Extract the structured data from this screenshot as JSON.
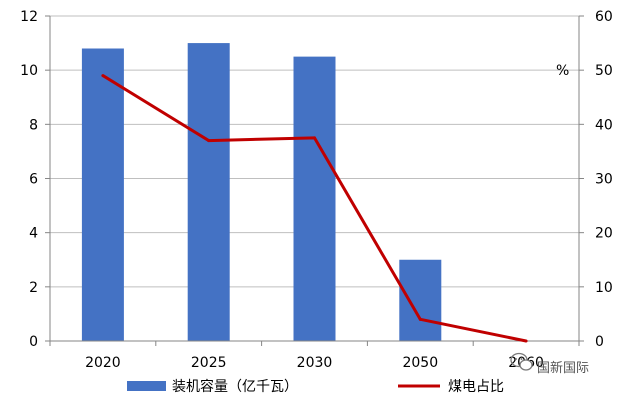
{
  "chart_data": {
    "type": "bar",
    "categories": [
      "2020",
      "2025",
      "2030",
      "2050",
      "2060"
    ],
    "series": [
      {
        "name": "装机容量（亿千瓦）",
        "type": "bar",
        "axis": "left",
        "color": "#4472C4",
        "values": [
          10.8,
          11.0,
          10.5,
          3.0,
          0
        ]
      },
      {
        "name": "煤电占比",
        "type": "line",
        "axis": "right",
        "color": "#C00000",
        "values": [
          49,
          37,
          37.5,
          4,
          0
        ]
      }
    ],
    "ylim_left": [
      0,
      12
    ],
    "yticks_left": [
      "0",
      "2",
      "4",
      "6",
      "8",
      "10",
      "12"
    ],
    "ylim_right": [
      0,
      60
    ],
    "yticks_right": [
      "0",
      "10",
      "20",
      "30",
      "40",
      "50",
      "60"
    ],
    "right_unit": "%",
    "grid": true,
    "legend_position": "bottom"
  },
  "watermark": {
    "icon": "wechat-icon",
    "text": "国新国际"
  }
}
